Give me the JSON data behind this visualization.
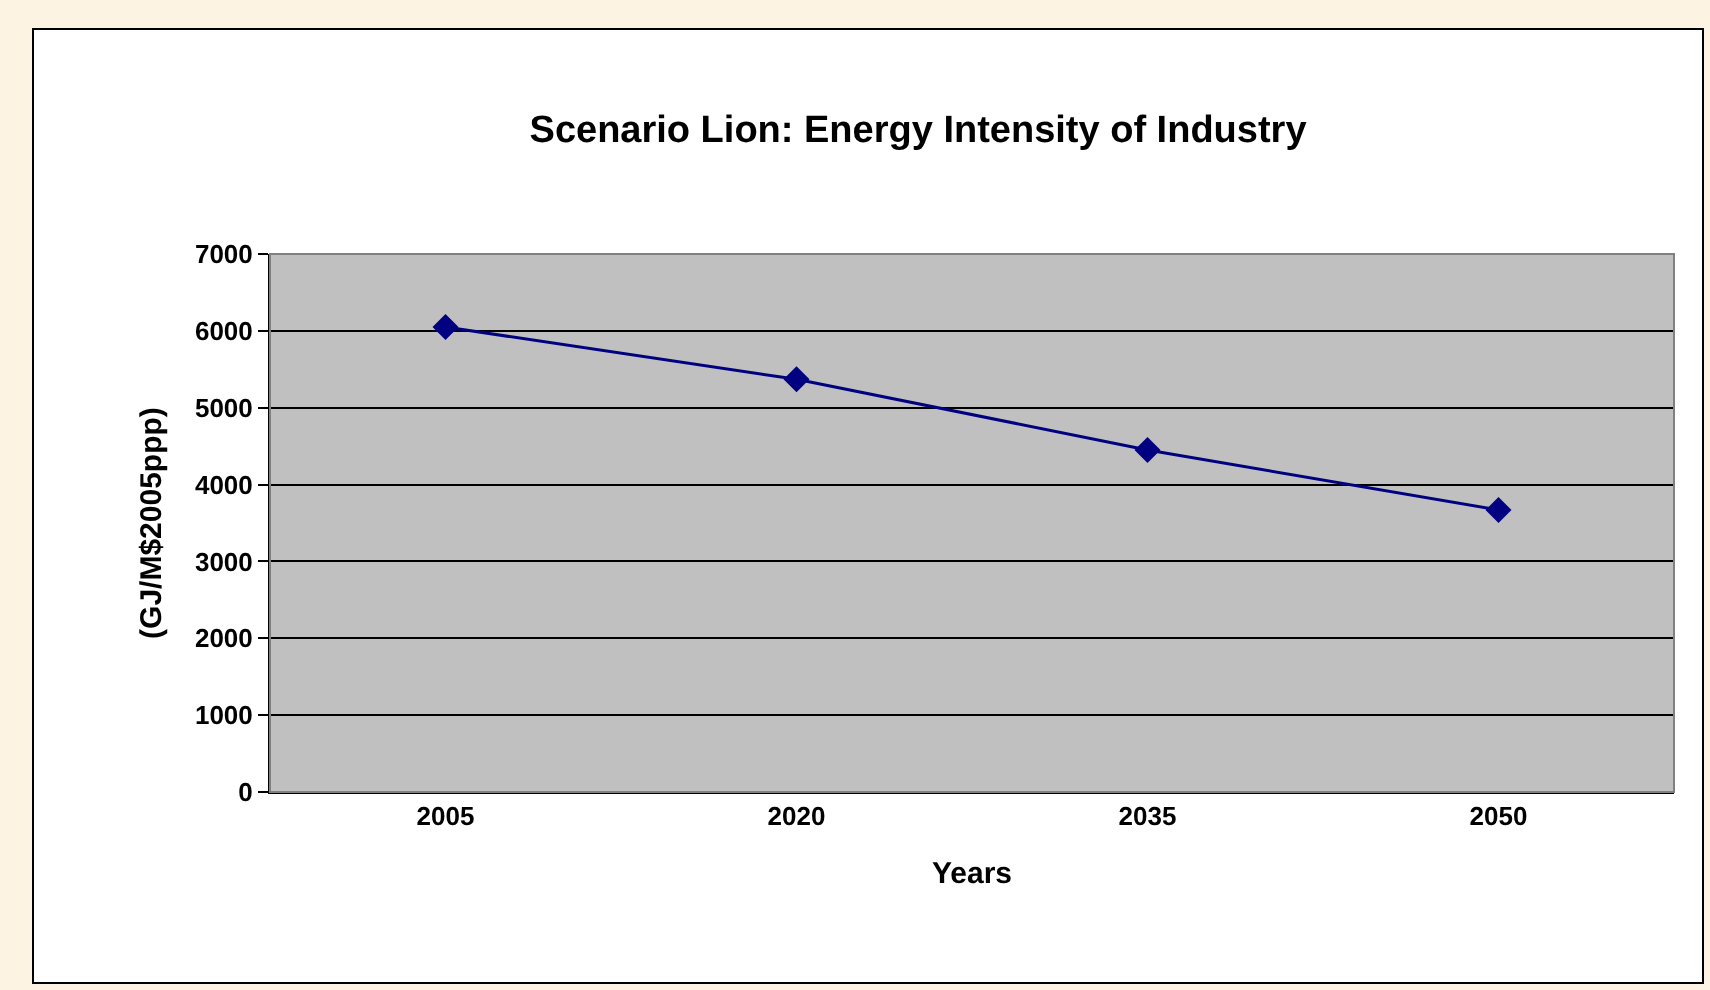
{
  "chart_data": {
    "type": "line",
    "title": "Scenario Lion: Energy Intensity of Industry",
    "xlabel": "Years",
    "ylabel": "(GJ/M$2005ppp)",
    "categories": [
      "2005",
      "2020",
      "2035",
      "2050"
    ],
    "series": [
      {
        "color": "#000080",
        "values": [
          6050,
          5370,
          4450,
          3670
        ]
      }
    ],
    "ylim": [
      0,
      7000
    ],
    "yticks": [
      0,
      1000,
      2000,
      3000,
      4000,
      5000,
      6000,
      7000
    ],
    "grid": "y",
    "marker": "diamond",
    "line_style": "solid"
  }
}
